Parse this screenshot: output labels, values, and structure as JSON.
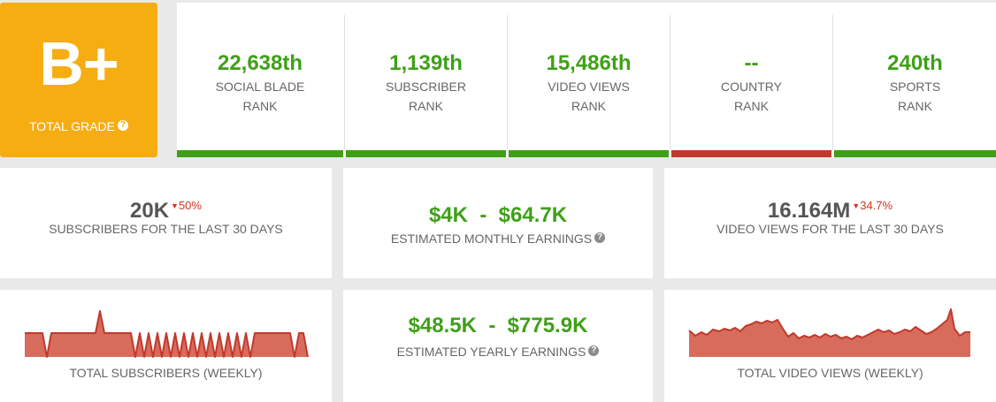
{
  "grade": {
    "letter": "B+",
    "label": "TOTAL GRADE",
    "help": "?"
  },
  "ranks": [
    {
      "value": "22,638th",
      "label_line1": "SOCIAL BLADE",
      "label_line2": "RANK",
      "status": "good"
    },
    {
      "value": "1,139th",
      "label_line1": "SUBSCRIBER",
      "label_line2": "RANK",
      "status": "good"
    },
    {
      "value": "15,486th",
      "label_line1": "VIDEO VIEWS",
      "label_line2": "RANK",
      "status": "good"
    },
    {
      "value": "--",
      "label_line1": "COUNTRY",
      "label_line2": "RANK",
      "status": "bad"
    },
    {
      "value": "240th",
      "label_line1": "SPORTS",
      "label_line2": "RANK",
      "status": "good"
    }
  ],
  "subscribers_30d": {
    "value": "20K",
    "delta": "50%",
    "label": "SUBSCRIBERS FOR THE LAST 30 DAYS"
  },
  "monthly_earnings": {
    "low": "$4K",
    "sep": "-",
    "high": "$64.7K",
    "label": "ESTIMATED MONTHLY EARNINGS",
    "help": "?"
  },
  "views_30d": {
    "value": "16.164M",
    "delta": "34.7%",
    "label": "VIDEO VIEWS FOR THE LAST 30 DAYS"
  },
  "yearly_earnings": {
    "low": "$48.5K",
    "sep": "-",
    "high": "$775.9K",
    "label": "ESTIMATED YEARLY EARNINGS",
    "help": "?"
  },
  "subscribers_chart": {
    "title": "TOTAL SUBSCRIBERS (WEEKLY)"
  },
  "views_chart": {
    "title": "TOTAL VIDEO VIEWS (WEEKLY)"
  },
  "colors": {
    "accent_green": "#3fa018",
    "grade_orange": "#f6ad12",
    "bar_good": "#3fa018",
    "bar_bad": "#c0392b",
    "spark_fill": "#d86c5c",
    "spark_line": "#c1392b",
    "delta_red": "#d9321c"
  },
  "icons": {
    "help": "question-circle-icon",
    "delta": "triangle-down-icon"
  }
}
